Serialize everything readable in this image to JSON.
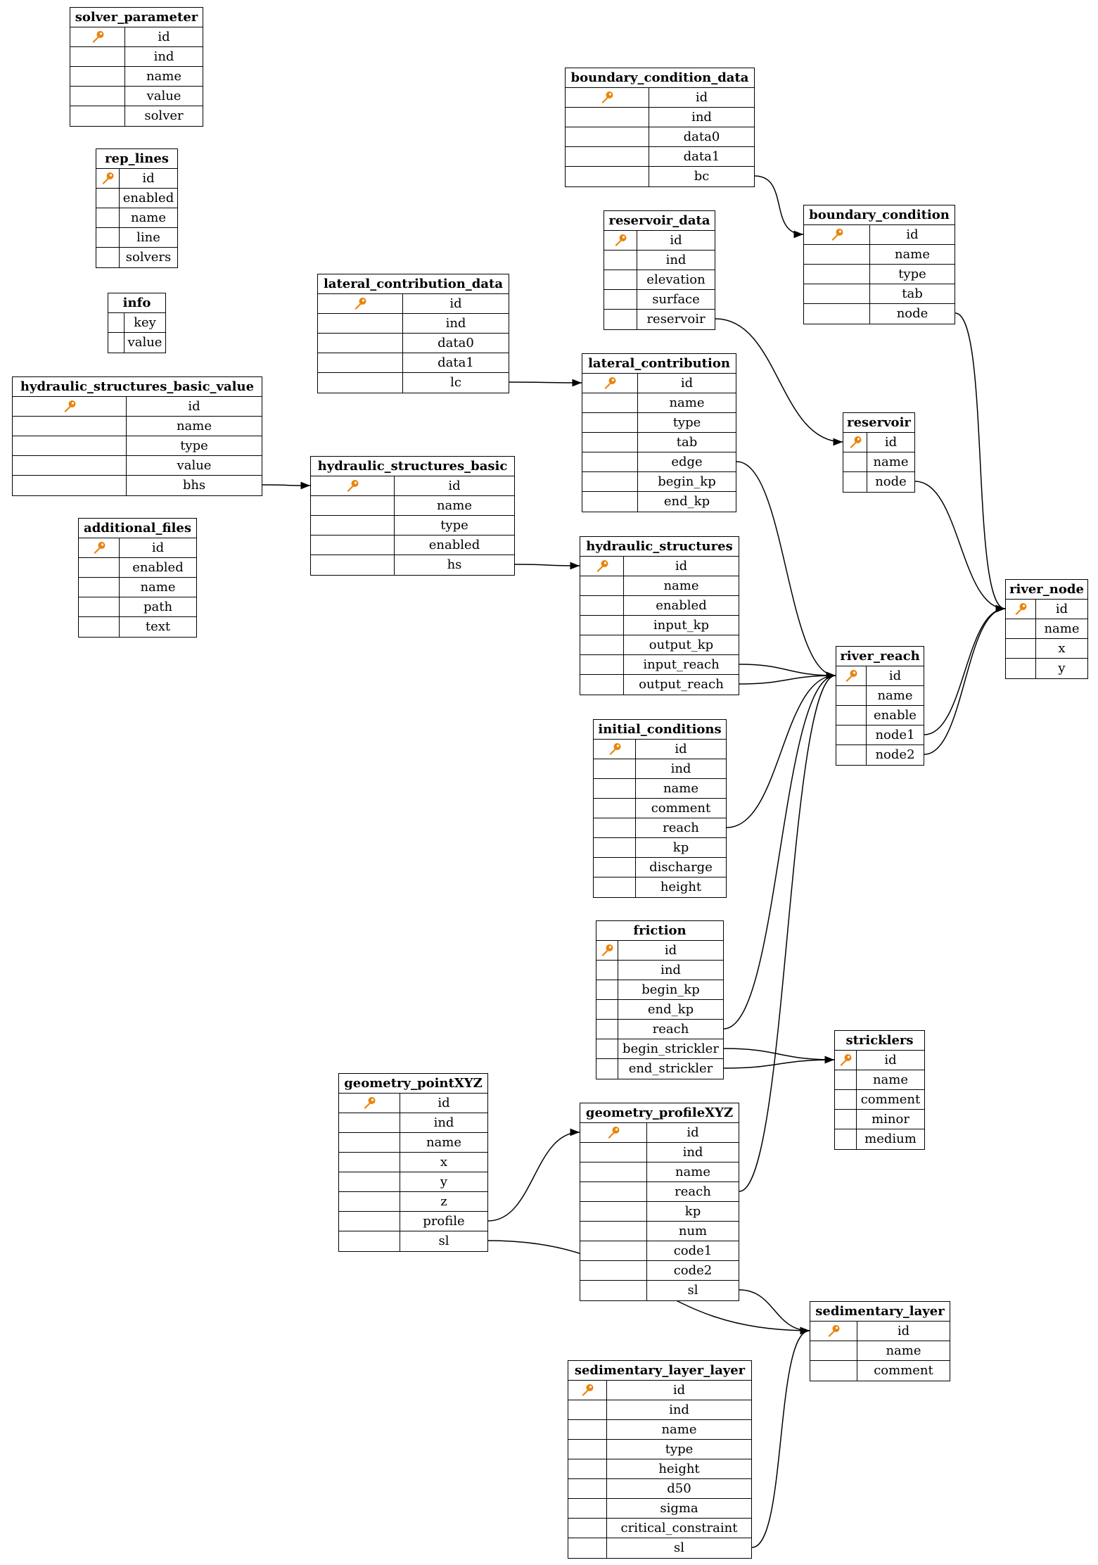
{
  "key_icon": "key-icon",
  "key_color": "#e8850c",
  "tables": [
    {
      "name": "solver_parameter",
      "fields": [
        "id",
        "ind",
        "name",
        "value",
        "solver"
      ],
      "pk": true
    },
    {
      "name": "rep_lines",
      "fields": [
        "id",
        "enabled",
        "name",
        "line",
        "solvers"
      ],
      "pk": true
    },
    {
      "name": "info",
      "fields": [
        "key",
        "value"
      ],
      "pk": false
    },
    {
      "name": "hydraulic_structures_basic_value",
      "fields": [
        "id",
        "name",
        "type",
        "value",
        "bhs"
      ],
      "pk": true
    },
    {
      "name": "additional_files",
      "fields": [
        "id",
        "enabled",
        "name",
        "path",
        "text"
      ],
      "pk": true
    },
    {
      "name": "lateral_contribution_data",
      "fields": [
        "id",
        "ind",
        "data0",
        "data1",
        "lc"
      ],
      "pk": true
    },
    {
      "name": "hydraulic_structures_basic",
      "fields": [
        "id",
        "name",
        "type",
        "enabled",
        "hs"
      ],
      "pk": true
    },
    {
      "name": "boundary_condition_data",
      "fields": [
        "id",
        "ind",
        "data0",
        "data1",
        "bc"
      ],
      "pk": true
    },
    {
      "name": "reservoir_data",
      "fields": [
        "id",
        "ind",
        "elevation",
        "surface",
        "reservoir"
      ],
      "pk": true
    },
    {
      "name": "boundary_condition",
      "fields": [
        "id",
        "name",
        "type",
        "tab",
        "node"
      ],
      "pk": true
    },
    {
      "name": "lateral_contribution",
      "fields": [
        "id",
        "name",
        "type",
        "tab",
        "edge",
        "begin_kp",
        "end_kp"
      ],
      "pk": true
    },
    {
      "name": "reservoir",
      "fields": [
        "id",
        "name",
        "node"
      ],
      "pk": true
    },
    {
      "name": "hydraulic_structures",
      "fields": [
        "id",
        "name",
        "enabled",
        "input_kp",
        "output_kp",
        "input_reach",
        "output_reach"
      ],
      "pk": true
    },
    {
      "name": "river_reach",
      "fields": [
        "id",
        "name",
        "enable",
        "node1",
        "node2"
      ],
      "pk": true
    },
    {
      "name": "river_node",
      "fields": [
        "id",
        "name",
        "x",
        "y"
      ],
      "pk": true
    },
    {
      "name": "initial_conditions",
      "fields": [
        "id",
        "ind",
        "name",
        "comment",
        "reach",
        "kp",
        "discharge",
        "height"
      ],
      "pk": true
    },
    {
      "name": "friction",
      "fields": [
        "id",
        "ind",
        "begin_kp",
        "end_kp",
        "reach",
        "begin_strickler",
        "end_strickler"
      ],
      "pk": true
    },
    {
      "name": "stricklers",
      "fields": [
        "id",
        "name",
        "comment",
        "minor",
        "medium"
      ],
      "pk": true
    },
    {
      "name": "geometry_pointXYZ",
      "fields": [
        "id",
        "ind",
        "name",
        "x",
        "y",
        "z",
        "profile",
        "sl"
      ],
      "pk": true
    },
    {
      "name": "geometry_profileXYZ",
      "fields": [
        "id",
        "ind",
        "name",
        "reach",
        "kp",
        "num",
        "code1",
        "code2",
        "sl"
      ],
      "pk": true
    },
    {
      "name": "sedimentary_layer",
      "fields": [
        "id",
        "name",
        "comment"
      ],
      "pk": true
    },
    {
      "name": "sedimentary_layer_layer",
      "fields": [
        "id",
        "ind",
        "name",
        "type",
        "height",
        "d50",
        "sigma",
        "critical_constraint",
        "sl"
      ],
      "pk": true
    }
  ],
  "relations": [
    {
      "from": "boundary_condition_data.bc",
      "to": "boundary_condition.id"
    },
    {
      "from": "reservoir_data.reservoir",
      "to": "reservoir.id"
    },
    {
      "from": "lateral_contribution_data.lc",
      "to": "lateral_contribution.id"
    },
    {
      "from": "hydraulic_structures_basic_value.bhs",
      "to": "hydraulic_structures_basic.id"
    },
    {
      "from": "hydraulic_structures_basic.hs",
      "to": "hydraulic_structures.id"
    },
    {
      "from": "boundary_condition.node",
      "to": "river_node.id"
    },
    {
      "from": "reservoir.node",
      "to": "river_node.id"
    },
    {
      "from": "lateral_contribution.edge",
      "to": "river_reach.id"
    },
    {
      "from": "hydraulic_structures.input_reach",
      "to": "river_reach.id"
    },
    {
      "from": "hydraulic_structures.output_reach",
      "to": "river_reach.id"
    },
    {
      "from": "river_reach.node1",
      "to": "river_node.id"
    },
    {
      "from": "river_reach.node2",
      "to": "river_node.id"
    },
    {
      "from": "initial_conditions.reach",
      "to": "river_reach.id"
    },
    {
      "from": "friction.reach",
      "to": "river_reach.id"
    },
    {
      "from": "friction.begin_strickler",
      "to": "stricklers.id"
    },
    {
      "from": "friction.end_strickler",
      "to": "stricklers.id"
    },
    {
      "from": "geometry_pointXYZ.profile",
      "to": "geometry_profileXYZ.id"
    },
    {
      "from": "geometry_pointXYZ.sl",
      "to": "sedimentary_layer.id"
    },
    {
      "from": "geometry_profileXYZ.reach",
      "to": "river_reach.id"
    },
    {
      "from": "geometry_profileXYZ.sl",
      "to": "sedimentary_layer.id"
    },
    {
      "from": "sedimentary_layer_layer.sl",
      "to": "sedimentary_layer.id"
    }
  ]
}
